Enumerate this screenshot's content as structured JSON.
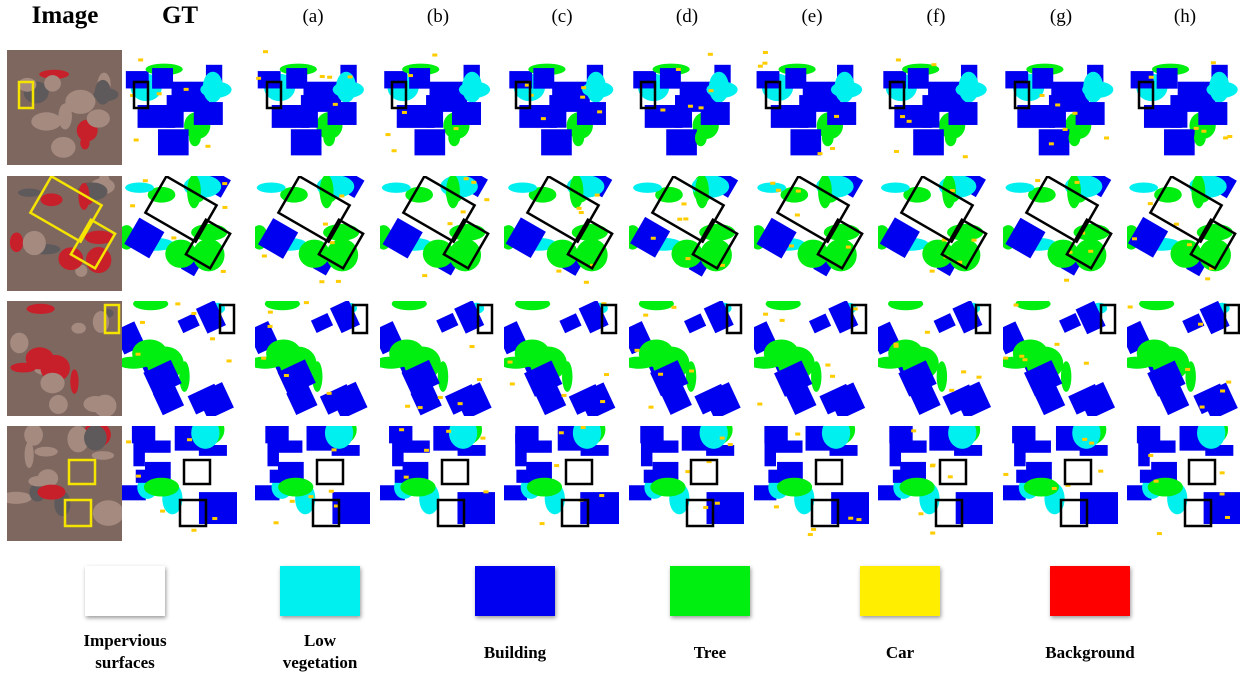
{
  "header": {
    "columns": [
      "Image",
      "GT",
      "(a)",
      "(b)",
      "(c)",
      "(d)",
      "(e)",
      "(f)",
      "(g)",
      "(h)"
    ]
  },
  "legend": [
    "Impervious surfaces",
    "Low vegetation",
    "Building",
    "Tree",
    "Car",
    "Background"
  ]
}
